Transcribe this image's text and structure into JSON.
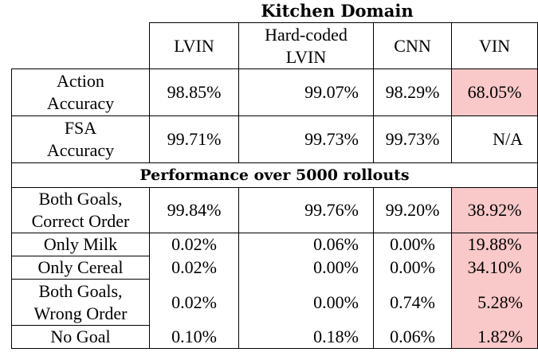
{
  "title": "Kitchen Domain",
  "columns": [
    "LVIN",
    "Hard-coded LVIN",
    "CNN",
    "VIN"
  ],
  "column_lines": {
    "hard_coded_1": "Hard-coded",
    "hard_coded_2": "LVIN"
  },
  "rows_top": [
    {
      "label_1": "Action",
      "label_2": "Accuracy",
      "values": [
        "98.85%",
        "99.07%",
        "98.29%",
        "68.05%"
      ]
    },
    {
      "label_1": "FSA",
      "label_2": "Accuracy",
      "values": [
        "99.71%",
        "99.73%",
        "99.73%",
        "N/A"
      ]
    }
  ],
  "section": "Performance over 5000 rollouts",
  "rows_bottom": [
    {
      "label_1": "Both Goals,",
      "label_2": "Correct Order",
      "values": [
        "99.84%",
        "99.76%",
        "99.20%",
        "38.92%"
      ]
    },
    {
      "label_1": "Only Milk",
      "label_2": "",
      "values": [
        "0.02%",
        "0.06%",
        "0.00%",
        "19.88%"
      ]
    },
    {
      "label_1": "Only Cereal",
      "label_2": "",
      "values": [
        "0.02%",
        "0.00%",
        "0.00%",
        "34.10%"
      ]
    },
    {
      "label_1": "Both Goals,",
      "label_2": "Wrong Order",
      "values": [
        "0.02%",
        "0.00%",
        "0.74%",
        "5.28%"
      ]
    },
    {
      "label_1": "No Goal",
      "label_2": "",
      "values": [
        "0.10%",
        "0.18%",
        "0.06%",
        "1.82%"
      ]
    }
  ],
  "highlight_color": "#f9c8c8"
}
